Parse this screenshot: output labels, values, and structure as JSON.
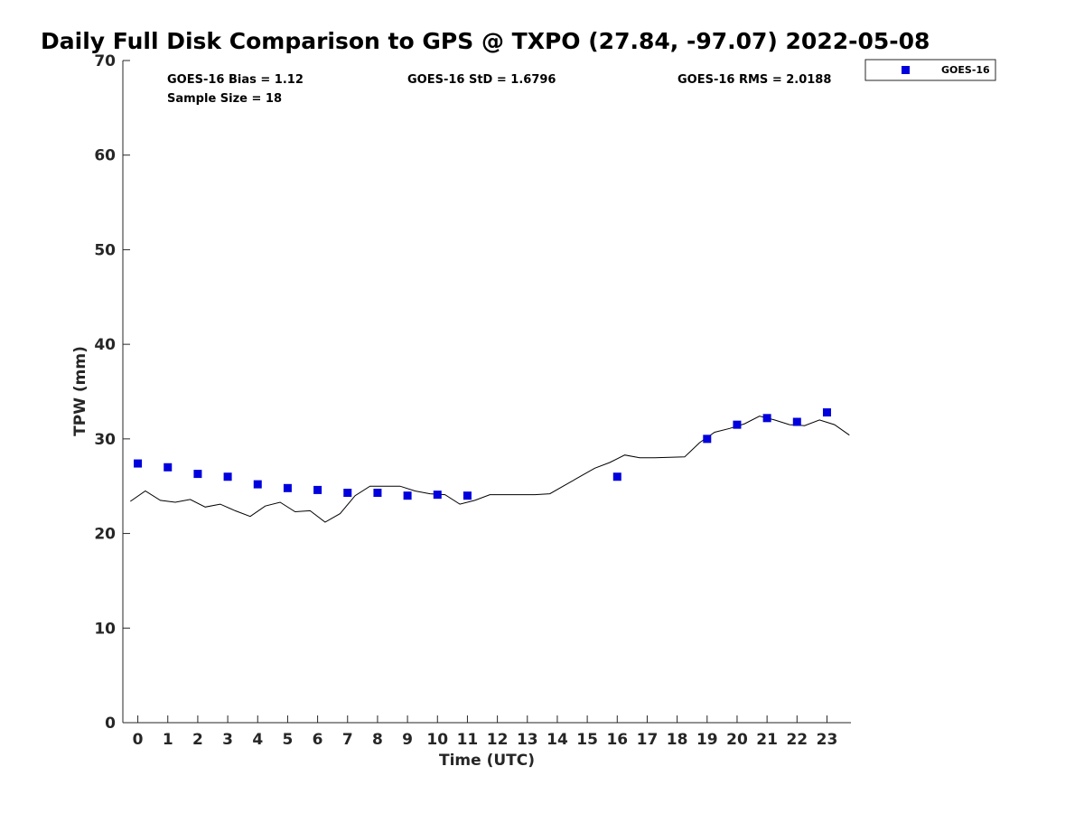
{
  "chart_data": {
    "type": "scatter",
    "title": "Daily Full Disk Comparison to GPS @ TXPO (27.84, -97.07) 2022-05-08",
    "xlabel": "Time (UTC)",
    "ylabel": "TPW (mm)",
    "xlim": [
      -0.5,
      23.8
    ],
    "ylim": [
      0,
      70
    ],
    "x_ticks": [
      "0",
      "1",
      "2",
      "3",
      "4",
      "5",
      "6",
      "7",
      "8",
      "9",
      "10",
      "11",
      "12",
      "13",
      "14",
      "15",
      "16",
      "17",
      "18",
      "19",
      "20",
      "21",
      "22",
      "23"
    ],
    "y_ticks": [
      "0",
      "10",
      "20",
      "30",
      "40",
      "50",
      "60",
      "70"
    ],
    "grid": false,
    "legend_position": "top-right",
    "stats": {
      "bias": "GOES-16 Bias = 1.12",
      "std": "GOES-16 StD = 1.6796",
      "rms": "GOES-16 RMS = 2.0188",
      "sample_size": "Sample Size = 18"
    },
    "series": [
      {
        "name": "GOES-16",
        "kind": "markers",
        "marker": "square",
        "color": "#0000dd",
        "x": [
          0,
          1,
          2,
          3,
          4,
          5,
          6,
          7,
          8,
          9,
          10,
          11,
          16,
          19,
          20,
          21,
          22,
          23
        ],
        "y": [
          27.4,
          27.0,
          26.3,
          26.0,
          25.2,
          24.8,
          24.6,
          24.3,
          24.3,
          24.0,
          24.1,
          24.0,
          26.0,
          30.0,
          31.5,
          32.2,
          31.8,
          32.8
        ]
      },
      {
        "kind": "line",
        "color": "#000000",
        "x": [
          -0.25,
          0.25,
          0.75,
          1.25,
          1.75,
          2.25,
          2.75,
          3.25,
          3.75,
          4.25,
          4.75,
          5.25,
          5.75,
          6.25,
          6.75,
          7.25,
          7.75,
          8.25,
          8.75,
          9.25,
          9.75,
          10.25,
          10.75,
          11.25,
          11.75,
          12.25,
          12.75,
          13.25,
          13.75,
          14.25,
          14.75,
          15.25,
          15.75,
          16.25,
          16.75,
          17.25,
          17.75,
          18.25,
          18.75,
          19.25,
          19.75,
          20.25,
          20.75,
          21.25,
          21.75,
          22.25,
          22.75,
          23.25,
          23.75
        ],
        "y": [
          23.4,
          24.5,
          23.5,
          23.3,
          23.6,
          22.8,
          23.1,
          22.4,
          21.8,
          22.9,
          23.3,
          22.3,
          22.4,
          21.2,
          22.1,
          24.0,
          25.0,
          25.0,
          25.0,
          24.5,
          24.2,
          24.1,
          23.1,
          23.5,
          24.1,
          24.1,
          24.1,
          24.1,
          24.2,
          25.1,
          26.0,
          26.9,
          27.5,
          28.3,
          28.0,
          28.0,
          28.05,
          28.1,
          29.6,
          30.7,
          31.1,
          31.6,
          32.4,
          32.0,
          31.5,
          31.4,
          32.0,
          31.5,
          30.4
        ]
      }
    ]
  }
}
